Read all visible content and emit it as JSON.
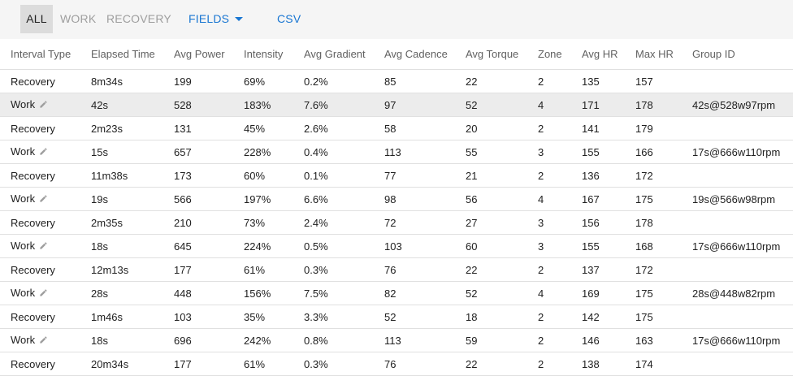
{
  "toolbar": {
    "all": "ALL",
    "work": "WORK",
    "recovery": "RECOVERY",
    "fields": "FIELDS",
    "csv": "CSV"
  },
  "columns": [
    "Interval Type",
    "Elapsed Time",
    "Avg Power",
    "Intensity",
    "Avg Gradient",
    "Avg Cadence",
    "Avg Torque",
    "Zone",
    "Avg HR",
    "Max HR",
    "Group ID"
  ],
  "rows": [
    {
      "type": "Recovery",
      "time": "8m34s",
      "power": "199",
      "intensity": "69%",
      "gradient": "0.2%",
      "cadence": "85",
      "torque": "22",
      "zone": "2",
      "hr": "135",
      "maxhr": "157",
      "group": ""
    },
    {
      "type": "Work",
      "time": "42s",
      "power": "528",
      "intensity": "183%",
      "gradient": "7.6%",
      "cadence": "97",
      "torque": "52",
      "zone": "4",
      "hr": "171",
      "maxhr": "178",
      "group": "42s@528w97rpm"
    },
    {
      "type": "Recovery",
      "time": "2m23s",
      "power": "131",
      "intensity": "45%",
      "gradient": "2.6%",
      "cadence": "58",
      "torque": "20",
      "zone": "2",
      "hr": "141",
      "maxhr": "179",
      "group": ""
    },
    {
      "type": "Work",
      "time": "15s",
      "power": "657",
      "intensity": "228%",
      "gradient": "0.4%",
      "cadence": "113",
      "torque": "55",
      "zone": "3",
      "hr": "155",
      "maxhr": "166",
      "group": "17s@666w110rpm"
    },
    {
      "type": "Recovery",
      "time": "11m38s",
      "power": "173",
      "intensity": "60%",
      "gradient": "0.1%",
      "cadence": "77",
      "torque": "21",
      "zone": "2",
      "hr": "136",
      "maxhr": "172",
      "group": ""
    },
    {
      "type": "Work",
      "time": "19s",
      "power": "566",
      "intensity": "197%",
      "gradient": "6.6%",
      "cadence": "98",
      "torque": "56",
      "zone": "4",
      "hr": "167",
      "maxhr": "175",
      "group": "19s@566w98rpm"
    },
    {
      "type": "Recovery",
      "time": "2m35s",
      "power": "210",
      "intensity": "73%",
      "gradient": "2.4%",
      "cadence": "72",
      "torque": "27",
      "zone": "3",
      "hr": "156",
      "maxhr": "178",
      "group": ""
    },
    {
      "type": "Work",
      "time": "18s",
      "power": "645",
      "intensity": "224%",
      "gradient": "0.5%",
      "cadence": "103",
      "torque": "60",
      "zone": "3",
      "hr": "155",
      "maxhr": "168",
      "group": "17s@666w110rpm"
    },
    {
      "type": "Recovery",
      "time": "12m13s",
      "power": "177",
      "intensity": "61%",
      "gradient": "0.3%",
      "cadence": "76",
      "torque": "22",
      "zone": "2",
      "hr": "137",
      "maxhr": "172",
      "group": ""
    },
    {
      "type": "Work",
      "time": "28s",
      "power": "448",
      "intensity": "156%",
      "gradient": "7.5%",
      "cadence": "82",
      "torque": "52",
      "zone": "4",
      "hr": "169",
      "maxhr": "175",
      "group": "28s@448w82rpm"
    },
    {
      "type": "Recovery",
      "time": "1m46s",
      "power": "103",
      "intensity": "35%",
      "gradient": "3.3%",
      "cadence": "52",
      "torque": "18",
      "zone": "2",
      "hr": "142",
      "maxhr": "175",
      "group": ""
    },
    {
      "type": "Work",
      "time": "18s",
      "power": "696",
      "intensity": "242%",
      "gradient": "0.8%",
      "cadence": "113",
      "torque": "59",
      "zone": "2",
      "hr": "146",
      "maxhr": "163",
      "group": "17s@666w110rpm"
    },
    {
      "type": "Recovery",
      "time": "20m34s",
      "power": "177",
      "intensity": "61%",
      "gradient": "0.3%",
      "cadence": "76",
      "torque": "22",
      "zone": "2",
      "hr": "138",
      "maxhr": "174",
      "group": ""
    }
  ]
}
